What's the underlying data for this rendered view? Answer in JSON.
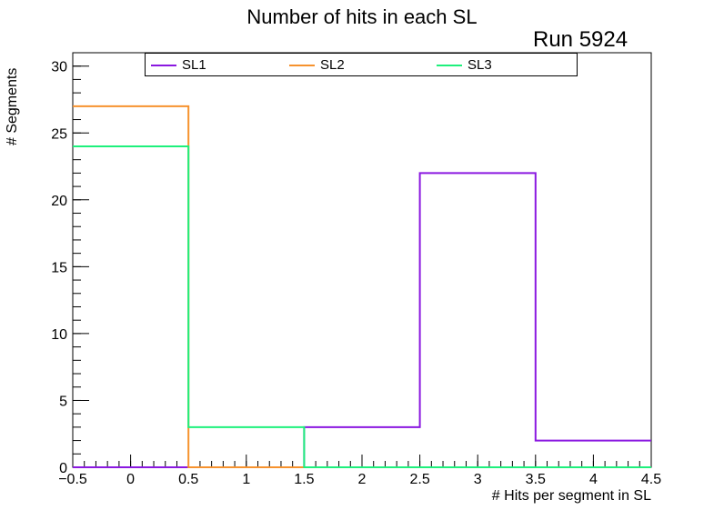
{
  "chart_data": {
    "type": "histogram",
    "title": "Number of hits in each SL",
    "annotation": "Run 5924",
    "xlabel": "# Hits per segment in SL",
    "ylabel": "# Segments",
    "xlim": [
      -0.5,
      4.5
    ],
    "ylim": [
      0,
      31
    ],
    "bin_edges": [
      -0.5,
      0.5,
      1.5,
      2.5,
      3.5,
      4.5
    ],
    "categories": [
      0,
      1,
      2,
      3,
      4
    ],
    "xticks": [
      "−0.5",
      "0",
      "0.5",
      "1",
      "1.5",
      "2",
      "2.5",
      "3",
      "3.5",
      "4",
      "4.5"
    ],
    "yticks": [
      "0",
      "5",
      "10",
      "15",
      "20",
      "25",
      "30"
    ],
    "legend_placement": "top",
    "grid": false,
    "series": [
      {
        "name": "SL1",
        "color": "#8a18e0",
        "values": [
          0,
          0,
          3,
          22,
          2
        ]
      },
      {
        "name": "SL2",
        "color": "#f6922e",
        "values": [
          27,
          0,
          0,
          0,
          0
        ]
      },
      {
        "name": "SL3",
        "color": "#1ef07c",
        "values": [
          24,
          3,
          0,
          0,
          0
        ]
      }
    ]
  }
}
